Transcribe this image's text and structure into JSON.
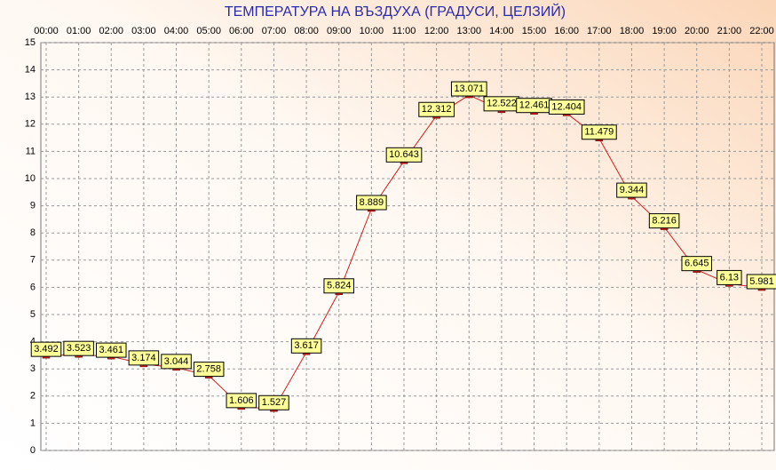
{
  "chart_data": {
    "type": "line",
    "title": "ТЕМПЕРАТУРА НА ВЪЗДУХА  (ГРАДУСИ, ЦЕЛЗИЙ)",
    "categories": [
      "00:00",
      "01:00",
      "02:00",
      "03:00",
      "04:00",
      "05:00",
      "06:00",
      "07:00",
      "08:00",
      "09:00",
      "10:00",
      "11:00",
      "12:00",
      "13:00",
      "14:00",
      "15:00",
      "16:00",
      "17:00",
      "18:00",
      "19:00",
      "20:00",
      "21:00",
      "22:00"
    ],
    "series": [
      {
        "name": "Температура",
        "color": "#d02020",
        "values": [
          3.492,
          3.523,
          3.461,
          3.174,
          3.044,
          2.758,
          1.606,
          1.527,
          3.617,
          5.824,
          8.889,
          10.643,
          12.312,
          13.071,
          12.522,
          12.461,
          12.404,
          11.479,
          9.344,
          8.216,
          6.645,
          6.13,
          5.981
        ]
      }
    ],
    "ylim": [
      0,
      15
    ],
    "yticks": [
      0,
      1,
      2,
      3,
      4,
      5,
      6,
      7,
      8,
      9,
      10,
      11,
      12,
      13,
      14,
      15
    ],
    "grid": true
  }
}
